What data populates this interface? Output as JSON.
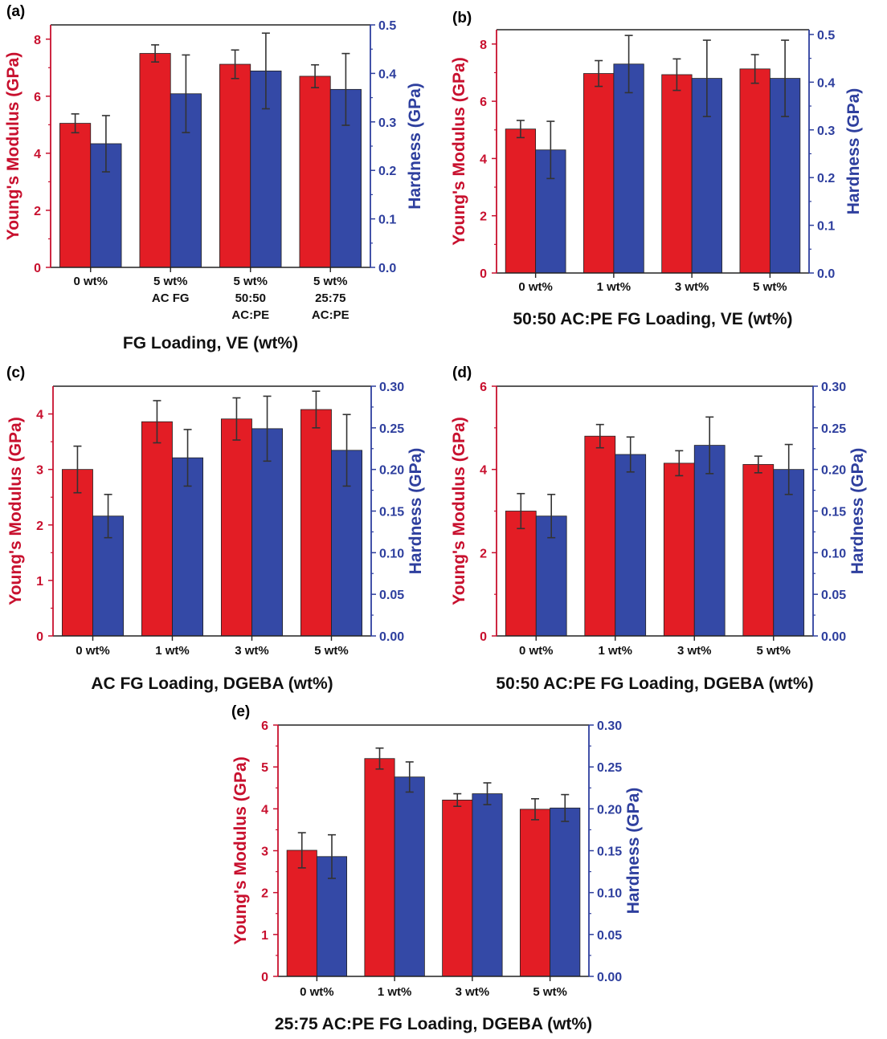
{
  "colors": {
    "modulus": "#e31d25",
    "hardness": "#3449a6",
    "axis_left": "#c8102e",
    "axis_right": "#2e3f9e",
    "error": "#333333"
  },
  "chart_data": [
    {
      "panel": "(a)",
      "type": "bar",
      "xlabel": "FG Loading, VE (wt%)",
      "ylabel_left": "Young's Modulus (GPa)",
      "ylabel_right": "Hardness (GPa)",
      "categories": [
        [
          "0 wt%"
        ],
        [
          "5 wt%",
          "AC FG"
        ],
        [
          "5 wt%",
          "50:50",
          "AC:PE"
        ],
        [
          "5 wt%",
          "25:75",
          "AC:PE"
        ]
      ],
      "ylim_left": [
        0,
        8.5
      ],
      "yticks_left": [
        "0",
        "2",
        "4",
        "6",
        "8"
      ],
      "ytick_values_left": [
        0,
        2,
        4,
        6,
        8
      ],
      "ylim_right": [
        0,
        0.5
      ],
      "yticks_right": [
        "0.0",
        "0.1",
        "0.2",
        "0.3",
        "0.4",
        "0.5"
      ],
      "ytick_values_right": [
        0,
        0.1,
        0.2,
        0.3,
        0.4,
        0.5
      ],
      "series": [
        {
          "name": "Young's Modulus",
          "axis": "left",
          "values": [
            5.05,
            7.5,
            7.12,
            6.7
          ],
          "errors": [
            0.33,
            0.3,
            0.5,
            0.4
          ]
        },
        {
          "name": "Hardness",
          "axis": "right",
          "values": [
            0.255,
            0.358,
            0.405,
            0.367
          ],
          "errors": [
            0.058,
            0.08,
            0.078,
            0.074
          ]
        }
      ]
    },
    {
      "panel": "(b)",
      "type": "bar",
      "xlabel": "50:50 AC:PE FG Loading, VE (wt%)",
      "ylabel_left": "Young's Modulus (GPa)",
      "ylabel_right": "Hardness (GPa)",
      "categories": [
        [
          "0 wt%"
        ],
        [
          "1 wt%"
        ],
        [
          "3 wt%"
        ],
        [
          "5 wt%"
        ]
      ],
      "ylim_left": [
        0,
        8.5
      ],
      "yticks_left": [
        "0",
        "2",
        "4",
        "6",
        "8"
      ],
      "ytick_values_left": [
        0,
        2,
        4,
        6,
        8
      ],
      "ylim_right": [
        0,
        0.51
      ],
      "yticks_right": [
        "0.0",
        "0.1",
        "0.2",
        "0.3",
        "0.4",
        "0.5"
      ],
      "ytick_values_right": [
        0,
        0.1,
        0.2,
        0.3,
        0.4,
        0.5
      ],
      "series": [
        {
          "name": "Young's Modulus",
          "axis": "left",
          "values": [
            5.03,
            6.97,
            6.93,
            7.13
          ],
          "errors": [
            0.3,
            0.45,
            0.55,
            0.5
          ]
        },
        {
          "name": "Hardness",
          "axis": "right",
          "values": [
            0.258,
            0.438,
            0.408,
            0.408
          ],
          "errors": [
            0.06,
            0.06,
            0.08,
            0.08
          ]
        }
      ]
    },
    {
      "panel": "(c)",
      "type": "bar",
      "xlabel": "AC FG Loading, DGEBA (wt%)",
      "ylabel_left": "Young's Modulus (GPa)",
      "ylabel_right": "Hardness (GPa)",
      "categories": [
        [
          "0 wt%"
        ],
        [
          "1 wt%"
        ],
        [
          "3 wt%"
        ],
        [
          "5 wt%"
        ]
      ],
      "ylim_left": [
        0,
        4.5
      ],
      "yticks_left": [
        "0",
        "1",
        "2",
        "3",
        "4"
      ],
      "ytick_values_left": [
        0,
        1,
        2,
        3,
        4
      ],
      "ylim_right": [
        0,
        0.3
      ],
      "yticks_right": [
        "0.00",
        "0.05",
        "0.10",
        "0.15",
        "0.20",
        "0.25",
        "0.30"
      ],
      "ytick_values_right": [
        0,
        0.05,
        0.1,
        0.15,
        0.2,
        0.25,
        0.3
      ],
      "series": [
        {
          "name": "Young's Modulus",
          "axis": "left",
          "values": [
            3.0,
            3.86,
            3.91,
            4.08
          ],
          "errors": [
            0.42,
            0.38,
            0.38,
            0.33
          ]
        },
        {
          "name": "Hardness",
          "axis": "right",
          "values": [
            0.144,
            0.214,
            0.249,
            0.223
          ],
          "errors": [
            0.026,
            0.034,
            0.039,
            0.043
          ]
        }
      ]
    },
    {
      "panel": "(d)",
      "type": "bar",
      "xlabel": "50:50 AC:PE FG Loading, DGEBA (wt%)",
      "ylabel_left": "Young's Modulus (GPa)",
      "ylabel_right": "Hardness (GPa)",
      "categories": [
        [
          "0 wt%"
        ],
        [
          "1 wt%"
        ],
        [
          "3 wt%"
        ],
        [
          "5 wt%"
        ]
      ],
      "ylim_left": [
        0,
        6
      ],
      "yticks_left": [
        "0",
        "2",
        "4",
        "6"
      ],
      "ytick_values_left": [
        0,
        2,
        4,
        6
      ],
      "ylim_right": [
        0,
        0.3
      ],
      "yticks_right": [
        "0.00",
        "0.05",
        "0.10",
        "0.15",
        "0.20",
        "0.25",
        "0.30"
      ],
      "ytick_values_right": [
        0,
        0.05,
        0.1,
        0.15,
        0.2,
        0.25,
        0.3
      ],
      "series": [
        {
          "name": "Young's Modulus",
          "axis": "left",
          "values": [
            3.0,
            4.8,
            4.15,
            4.12
          ],
          "errors": [
            0.42,
            0.28,
            0.3,
            0.2
          ]
        },
        {
          "name": "Hardness",
          "axis": "right",
          "values": [
            0.144,
            0.218,
            0.229,
            0.2
          ],
          "errors": [
            0.026,
            0.021,
            0.034,
            0.03
          ]
        }
      ]
    },
    {
      "panel": "(e)",
      "type": "bar",
      "xlabel": "25:75 AC:PE FG Loading, DGEBA (wt%)",
      "ylabel_left": "Young's Modulus (GPa)",
      "ylabel_right": "Hardness (GPa)",
      "categories": [
        [
          "0 wt%"
        ],
        [
          "1 wt%"
        ],
        [
          "3 wt%"
        ],
        [
          "5 wt%"
        ]
      ],
      "ylim_left": [
        0,
        6
      ],
      "yticks_left": [
        "0",
        "1",
        "2",
        "3",
        "4",
        "5",
        "6"
      ],
      "ytick_values_left": [
        0,
        1,
        2,
        3,
        4,
        5,
        6
      ],
      "ylim_right": [
        0,
        0.3
      ],
      "yticks_right": [
        "0.00",
        "0.05",
        "0.10",
        "0.15",
        "0.20",
        "0.25",
        "0.30"
      ],
      "ytick_values_right": [
        0,
        0.05,
        0.1,
        0.15,
        0.2,
        0.25,
        0.3
      ],
      "series": [
        {
          "name": "Young's Modulus",
          "axis": "left",
          "values": [
            3.01,
            5.2,
            4.21,
            3.99
          ],
          "errors": [
            0.42,
            0.25,
            0.15,
            0.25
          ]
        },
        {
          "name": "Hardness",
          "axis": "right",
          "values": [
            0.143,
            0.238,
            0.218,
            0.201
          ],
          "errors": [
            0.026,
            0.018,
            0.013,
            0.016
          ]
        }
      ]
    }
  ]
}
